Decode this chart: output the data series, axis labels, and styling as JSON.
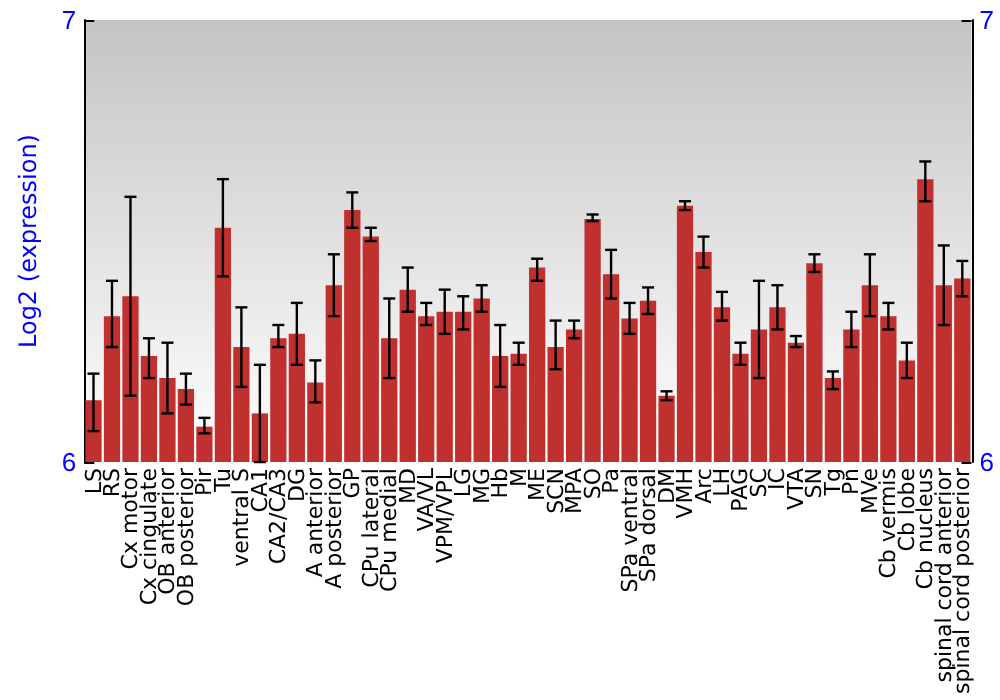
{
  "chart_data": {
    "type": "bar",
    "ylabel": "Log2 (expression)",
    "categories": [
      "LS",
      "RS",
      "Cx motor",
      "Cx cingulate",
      "OB anterior",
      "OB posterior",
      "Pir",
      "Tu",
      "ventral S",
      "CA1",
      "CA2/CA3",
      "DG",
      "A anterior",
      "A posterior",
      "GP",
      "CPu lateral",
      "CPu medial",
      "MD",
      "VA/VL",
      "VPM/VPL",
      "LG",
      "MG",
      "Hb",
      "M",
      "ME",
      "SCN",
      "MPA",
      "SO",
      "Pa",
      "SPa ventral",
      "SPa dorsal",
      "DM",
      "VMH",
      "Arc",
      "LH",
      "PAG",
      "SC",
      "IC",
      "VTA",
      "SN",
      "Tg",
      "Pn",
      "MVe",
      "Cb vermis",
      "Cb lobe",
      "Cb nucleus",
      "spinal cord anterior",
      "spinal cord posterior"
    ],
    "values": [
      6.14,
      6.33,
      6.375,
      6.24,
      6.19,
      6.165,
      6.08,
      6.53,
      6.26,
      6.11,
      6.28,
      6.29,
      6.18,
      6.4,
      6.57,
      6.51,
      6.28,
      6.39,
      6.33,
      6.34,
      6.34,
      6.37,
      6.24,
      6.245,
      6.44,
      6.26,
      6.3,
      6.55,
      6.425,
      6.325,
      6.365,
      6.15,
      6.58,
      6.475,
      6.35,
      6.245,
      6.3,
      6.35,
      6.27,
      6.45,
      6.19,
      6.3,
      6.4,
      6.33,
      6.23,
      6.64,
      6.4,
      6.415
    ],
    "errors": [
      [
        6.07,
        6.2
      ],
      [
        6.26,
        6.41
      ],
      [
        6.15,
        6.6
      ],
      [
        6.19,
        6.28
      ],
      [
        6.11,
        6.27
      ],
      [
        6.13,
        6.2
      ],
      [
        6.065,
        6.1
      ],
      [
        6.42,
        6.64
      ],
      [
        6.17,
        6.35
      ],
      [
        6.0,
        6.22
      ],
      [
        6.26,
        6.31
      ],
      [
        6.22,
        6.36
      ],
      [
        6.135,
        6.23
      ],
      [
        6.33,
        6.47
      ],
      [
        6.53,
        6.61
      ],
      [
        6.5,
        6.53
      ],
      [
        6.19,
        6.37
      ],
      [
        6.34,
        6.44
      ],
      [
        6.31,
        6.36
      ],
      [
        6.29,
        6.39
      ],
      [
        6.3,
        6.375
      ],
      [
        6.34,
        6.4
      ],
      [
        6.17,
        6.31
      ],
      [
        6.22,
        6.27
      ],
      [
        6.41,
        6.46
      ],
      [
        6.21,
        6.32
      ],
      [
        6.28,
        6.32
      ],
      [
        6.545,
        6.56
      ],
      [
        6.37,
        6.48
      ],
      [
        6.29,
        6.36
      ],
      [
        6.335,
        6.395
      ],
      [
        6.14,
        6.16
      ],
      [
        6.57,
        6.59
      ],
      [
        6.44,
        6.51
      ],
      [
        6.32,
        6.385
      ],
      [
        6.22,
        6.27
      ],
      [
        6.19,
        6.41
      ],
      [
        6.3,
        6.4
      ],
      [
        6.26,
        6.285
      ],
      [
        6.43,
        6.47
      ],
      [
        6.165,
        6.205
      ],
      [
        6.26,
        6.34
      ],
      [
        6.33,
        6.47
      ],
      [
        6.3,
        6.36
      ],
      [
        6.19,
        6.27
      ],
      [
        6.59,
        6.68
      ],
      [
        6.31,
        6.49
      ],
      [
        6.375,
        6.455
      ]
    ],
    "color": "#c0302e",
    "ylim": [
      6,
      7
    ],
    "yticks": [
      6,
      7
    ],
    "y2lim": [
      6,
      7
    ],
    "y2ticks": [
      6,
      7
    ],
    "grid": false
  }
}
